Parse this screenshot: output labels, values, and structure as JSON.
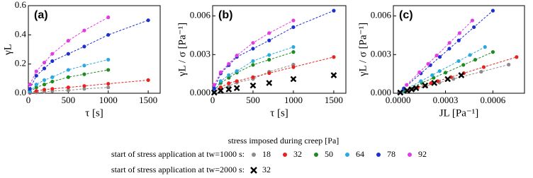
{
  "chart_data": [
    {
      "type": "scatter",
      "panel_label": "(a)",
      "xlabel": "τ [s]",
      "ylabel": "γL",
      "xlim": [
        0,
        1650
      ],
      "ylim": [
        0,
        0.6
      ],
      "xticks": [
        0,
        500,
        1000,
        1500
      ],
      "yticks": [
        {
          "value": 0,
          "label": "0.0"
        },
        0.2,
        0.4,
        0.6
      ],
      "series": [
        {
          "name": "18",
          "color": "#8c8c8c",
          "x": [
            20,
            100,
            200,
            300,
            500,
            700,
            1000
          ],
          "values": [
            0.002,
            0.006,
            0.01,
            0.015,
            0.02,
            0.03,
            0.04
          ]
        },
        {
          "name": "32",
          "color": "#e8231f",
          "x": [
            20,
            100,
            200,
            300,
            500,
            700,
            1000,
            1500
          ],
          "values": [
            0.005,
            0.015,
            0.025,
            0.03,
            0.04,
            0.05,
            0.065,
            0.09
          ]
        },
        {
          "name": "50",
          "color": "#1f8a1f",
          "x": [
            20,
            100,
            200,
            300,
            500,
            700,
            1000
          ],
          "values": [
            0.01,
            0.04,
            0.06,
            0.08,
            0.11,
            0.13,
            0.16
          ]
        },
        {
          "name": "64",
          "color": "#2aa8e0",
          "x": [
            20,
            100,
            200,
            300,
            500,
            700,
            1000
          ],
          "values": [
            0.01,
            0.06,
            0.09,
            0.11,
            0.16,
            0.19,
            0.23
          ]
        },
        {
          "name": "78",
          "color": "#1c2fd0",
          "x": [
            20,
            100,
            200,
            300,
            500,
            700,
            1000,
            1500
          ],
          "values": [
            0.03,
            0.12,
            0.17,
            0.22,
            0.27,
            0.32,
            0.4,
            0.5
          ]
        },
        {
          "name": "92",
          "color": "#e33be3",
          "x": [
            20,
            100,
            200,
            300,
            500,
            700,
            1000
          ],
          "values": [
            0.06,
            0.15,
            0.21,
            0.27,
            0.36,
            0.43,
            0.52
          ]
        }
      ]
    },
    {
      "type": "scatter",
      "panel_label": "(b)",
      "xlabel": "τ [s]",
      "ylabel": "γL / σ [Pa⁻¹]",
      "xlim": [
        0,
        1650
      ],
      "ylim": [
        0,
        0.0068
      ],
      "xticks": [
        0,
        500,
        1000,
        1500
      ],
      "yticks": [
        {
          "value": 0,
          "label": "0.000"
        },
        0.003,
        0.006
      ],
      "series": [
        {
          "name": "18",
          "color": "#8c8c8c",
          "x": [
            20,
            100,
            200,
            300,
            500,
            700,
            1000
          ],
          "values": [
            0.00011,
            0.00033,
            0.00056,
            0.00083,
            0.00111,
            0.00167,
            0.00222
          ]
        },
        {
          "name": "32",
          "color": "#e8231f",
          "x": [
            20,
            100,
            200,
            300,
            500,
            700,
            1000,
            1500
          ],
          "values": [
            0.00016,
            0.00047,
            0.00078,
            0.00094,
            0.00125,
            0.00156,
            0.00203,
            0.00281
          ]
        },
        {
          "name": "50",
          "color": "#1f8a1f",
          "x": [
            20,
            100,
            200,
            300,
            500,
            700,
            1000
          ],
          "values": [
            0.0002,
            0.0008,
            0.0012,
            0.0016,
            0.0022,
            0.0026,
            0.0032
          ]
        },
        {
          "name": "64",
          "color": "#2aa8e0",
          "x": [
            20,
            100,
            200,
            300,
            500,
            700,
            1000
          ],
          "values": [
            0.00016,
            0.00094,
            0.00141,
            0.00172,
            0.0025,
            0.00297,
            0.00359
          ]
        },
        {
          "name": "78",
          "color": "#1c2fd0",
          "x": [
            20,
            100,
            200,
            300,
            500,
            700,
            1000,
            1500
          ],
          "values": [
            0.00038,
            0.00154,
            0.00218,
            0.00282,
            0.00346,
            0.0041,
            0.00513,
            0.00641
          ]
        },
        {
          "name": "92",
          "color": "#e33be3",
          "x": [
            20,
            100,
            200,
            300,
            500,
            700,
            1000
          ],
          "values": [
            0.00065,
            0.00163,
            0.00228,
            0.00293,
            0.00391,
            0.00467,
            0.00565
          ]
        },
        {
          "name": "32",
          "color": "#000000",
          "marker": "x",
          "x": [
            20,
            100,
            200,
            300,
            500,
            700,
            1000,
            1500
          ],
          "values": [
            5e-05,
            0.0002,
            0.0003,
            0.0004,
            0.0006,
            0.0008,
            0.0011,
            0.0014
          ]
        }
      ]
    },
    {
      "type": "scatter",
      "panel_label": "(c)",
      "xlabel": "JL [Pa⁻¹]",
      "ylabel": "γL / σ [Pa⁻¹]",
      "xlim": [
        -3e-05,
        0.0008
      ],
      "ylim": [
        0,
        0.0068
      ],
      "xticks": [
        {
          "value": 0,
          "label": "0.0000"
        },
        0.0003,
        0.0006
      ],
      "yticks": [
        {
          "value": 0,
          "label": "0.000"
        },
        0.003,
        0.006
      ],
      "series": [
        {
          "name": "18",
          "color": "#8c8c8c",
          "x": [
            3.5e-05,
            0.000104,
            0.000176,
            0.000262,
            0.00035,
            0.000526,
            0.0007
          ],
          "values": [
            0.00011,
            0.00033,
            0.00056,
            0.00083,
            0.00111,
            0.00167,
            0.00222
          ]
        },
        {
          "name": "32",
          "color": "#e8231f",
          "x": [
            4.3e-05,
            0.000125,
            0.000208,
            0.000251,
            0.000334,
            0.000416,
            0.000542,
            0.00075
          ],
          "values": [
            0.00016,
            0.00047,
            0.00078,
            0.00094,
            0.00125,
            0.00156,
            0.00203,
            0.00281
          ]
        },
        {
          "name": "50",
          "color": "#1f8a1f",
          "x": [
            3.75e-05,
            0.00015,
            0.000225,
            0.0003,
            0.000413,
            0.000488,
            0.0006
          ],
          "values": [
            0.0002,
            0.0008,
            0.0012,
            0.0016,
            0.0022,
            0.0026,
            0.0032
          ]
        },
        {
          "name": "64",
          "color": "#2aa8e0",
          "x": [
            2.5e-05,
            0.000144,
            0.000216,
            0.000263,
            0.000383,
            0.000455,
            0.00055
          ],
          "values": [
            0.00016,
            0.00094,
            0.00141,
            0.00172,
            0.0025,
            0.00297,
            0.00359
          ]
        },
        {
          "name": "78",
          "color": "#1c2fd0",
          "x": [
            3.6e-05,
            0.000144,
            0.000204,
            0.000264,
            0.000324,
            0.000384,
            0.00048,
            0.0006
          ],
          "values": [
            0.00038,
            0.00154,
            0.00218,
            0.00282,
            0.00346,
            0.0041,
            0.00513,
            0.00641
          ]
        },
        {
          "name": "92",
          "color": "#e33be3",
          "x": [
            5.4e-05,
            0.000135,
            0.00019,
            0.000244,
            0.000325,
            0.000389,
            0.00047
          ],
          "values": [
            0.00065,
            0.00163,
            0.00228,
            0.00293,
            0.00391,
            0.00467,
            0.00565
          ]
        },
        {
          "name": "32",
          "color": "#000000",
          "marker": "x",
          "x": [
            1.4e-05,
            5.7e-05,
            8.6e-05,
            0.000114,
            0.000171,
            0.000229,
            0.000314,
            0.0004
          ],
          "values": [
            5e-05,
            0.0002,
            0.0003,
            0.0004,
            0.0006,
            0.0008,
            0.0011,
            0.0014
          ]
        }
      ]
    }
  ],
  "legend": {
    "title": "stress imposed during creep [Pa]",
    "rows": [
      "start of stress application at tw=1000 s:",
      "start of stress application at tw=2000 s:"
    ]
  }
}
